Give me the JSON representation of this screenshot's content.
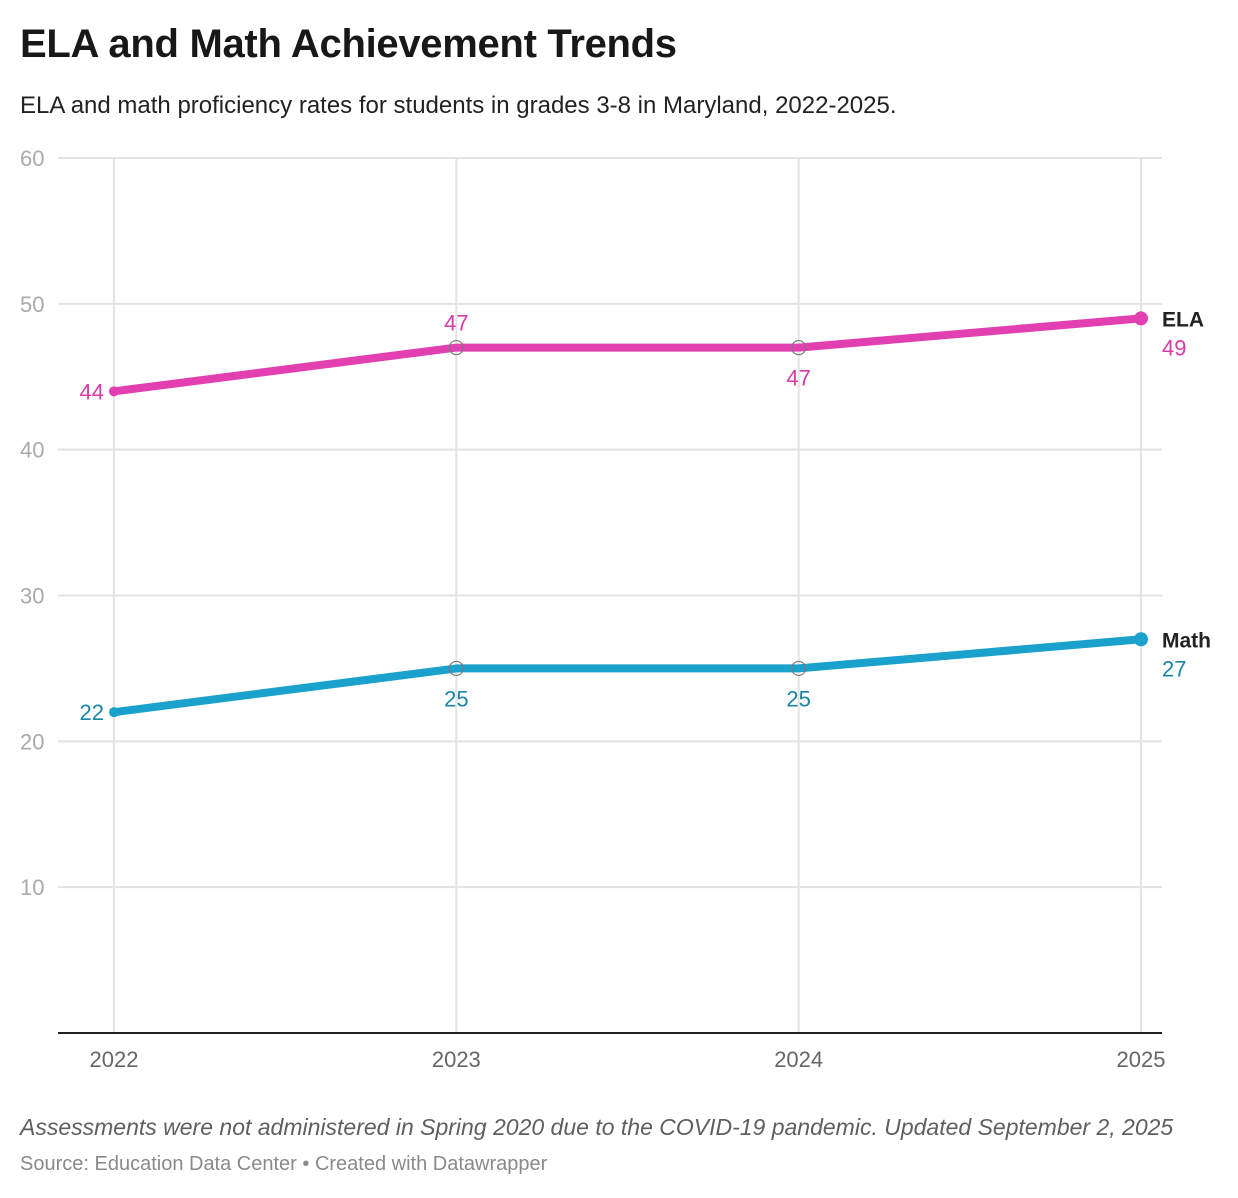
{
  "title": "ELA and Math Achievement Trends",
  "subtitle": "ELA and math proficiency rates for students in grades 3-8 in Maryland, 2022-2025.",
  "notes": "Assessments were not administered in Spring 2020 due to the COVID-19 pandemic. Updated September 2, 2025",
  "source": "Source: Education Data Center • Created with Datawrapper",
  "chart_data": {
    "type": "line",
    "x": [
      "2022",
      "2023",
      "2024",
      "2025"
    ],
    "series": [
      {
        "name": "ELA",
        "values": [
          44,
          47,
          47,
          49
        ],
        "color": "#e23fb1"
      },
      {
        "name": "Math",
        "values": [
          22,
          25,
          25,
          27
        ],
        "color": "#1aa1cc"
      }
    ],
    "ylim": [
      0,
      60
    ],
    "yticks": [
      10,
      20,
      30,
      40,
      50,
      60
    ],
    "grid": true,
    "legend": "direct labels at line ends"
  }
}
